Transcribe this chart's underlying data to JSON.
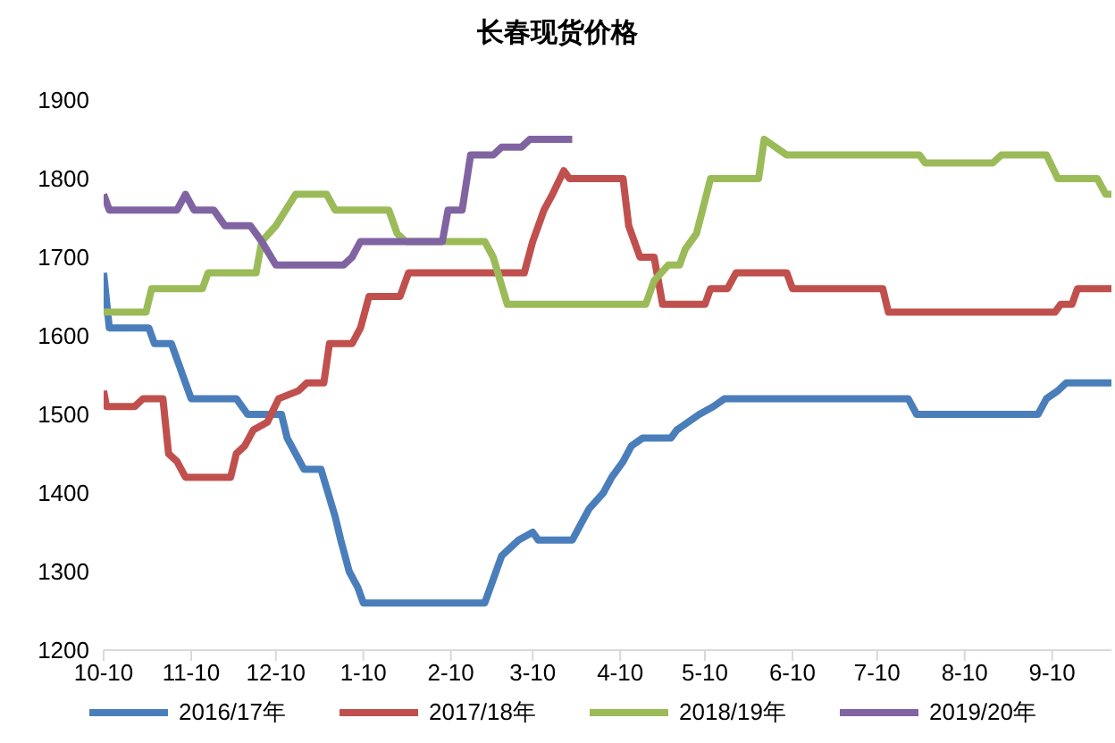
{
  "chart_data": {
    "type": "line",
    "title": "长春现货价格",
    "xlim": [
      "2019-10-10",
      "2020-10-01"
    ],
    "xticks": [
      {
        "value": "2019-10-10",
        "label": "10-10"
      },
      {
        "value": "2019-11-10",
        "label": "11-10"
      },
      {
        "value": "2019-12-10",
        "label": "12-10"
      },
      {
        "value": "2020-01-10",
        "label": "1-10"
      },
      {
        "value": "2020-02-10",
        "label": "2-10"
      },
      {
        "value": "2020-03-10",
        "label": "3-10"
      },
      {
        "value": "2020-04-10",
        "label": "4-10"
      },
      {
        "value": "2020-05-10",
        "label": "5-10"
      },
      {
        "value": "2020-06-10",
        "label": "6-10"
      },
      {
        "value": "2020-07-10",
        "label": "7-10"
      },
      {
        "value": "2020-08-10",
        "label": "8-10"
      },
      {
        "value": "2020-09-10",
        "label": "9-10"
      }
    ],
    "ylim": [
      1200,
      1900
    ],
    "yticks": [
      1200,
      1300,
      1400,
      1500,
      1600,
      1700,
      1800,
      1900
    ],
    "grid": false,
    "legend": "bottom",
    "marker": "none",
    "line_style": "solid",
    "series": [
      {
        "name": "2016/17年",
        "color": "#4a7ebb",
        "x": [
          "2019-10-10",
          "2019-10-12",
          "2019-10-26",
          "2019-10-28",
          "2019-11-03",
          "2019-11-06",
          "2019-11-08",
          "2019-11-10",
          "2019-11-26",
          "2019-11-30",
          "2019-12-12",
          "2019-12-14",
          "2019-12-20",
          "2019-12-26",
          "2019-12-31",
          "2020-01-02",
          "2020-01-05",
          "2020-01-08",
          "2020-01-10",
          "2020-02-22",
          "2020-02-24",
          "2020-02-28",
          "2020-03-05",
          "2020-03-10",
          "2020-03-12",
          "2020-03-24",
          "2020-03-27",
          "2020-03-30",
          "2020-04-04",
          "2020-04-07",
          "2020-04-11",
          "2020-04-14",
          "2020-04-18",
          "2020-04-28",
          "2020-04-30",
          "2020-05-08",
          "2020-05-13",
          "2020-05-17",
          "2020-07-21",
          "2020-07-24",
          "2020-09-05",
          "2020-09-08",
          "2020-09-12",
          "2020-09-15",
          "2020-10-01"
        ],
        "values": [
          1680,
          1610,
          1610,
          1590,
          1590,
          1560,
          1540,
          1520,
          1520,
          1500,
          1500,
          1470,
          1430,
          1430,
          1370,
          1340,
          1300,
          1280,
          1260,
          1260,
          1280,
          1320,
          1340,
          1350,
          1340,
          1340,
          1360,
          1380,
          1400,
          1420,
          1440,
          1460,
          1470,
          1470,
          1480,
          1500,
          1510,
          1520,
          1520,
          1500,
          1500,
          1520,
          1530,
          1540,
          1540
        ]
      },
      {
        "name": "2017/18年",
        "color": "#c0504d",
        "x": [
          "2019-10-10",
          "2019-10-11",
          "2019-10-21",
          "2019-10-24",
          "2019-10-31",
          "2019-11-02",
          "2019-11-05",
          "2019-11-08",
          "2019-11-24",
          "2019-11-26",
          "2019-11-29",
          "2019-12-02",
          "2019-12-07",
          "2019-12-11",
          "2019-12-18",
          "2019-12-21",
          "2019-12-27",
          "2019-12-29",
          "2020-01-06",
          "2020-01-09",
          "2020-01-12",
          "2020-01-23",
          "2020-01-26",
          "2020-03-07",
          "2020-03-10",
          "2020-03-14",
          "2020-03-17",
          "2020-03-21",
          "2020-03-23",
          "2020-04-11",
          "2020-04-13",
          "2020-04-17",
          "2020-04-22",
          "2020-04-25",
          "2020-05-10",
          "2020-05-12",
          "2020-05-18",
          "2020-05-21",
          "2020-06-08",
          "2020-06-10",
          "2020-07-12",
          "2020-07-14",
          "2020-09-11",
          "2020-09-13",
          "2020-09-17",
          "2020-09-19",
          "2020-10-01"
        ],
        "values": [
          1530,
          1510,
          1510,
          1520,
          1520,
          1450,
          1440,
          1420,
          1420,
          1450,
          1460,
          1480,
          1490,
          1520,
          1530,
          1540,
          1540,
          1590,
          1590,
          1610,
          1650,
          1650,
          1680,
          1680,
          1720,
          1760,
          1780,
          1810,
          1800,
          1800,
          1740,
          1700,
          1700,
          1640,
          1640,
          1660,
          1660,
          1680,
          1680,
          1660,
          1660,
          1630,
          1630,
          1640,
          1640,
          1660,
          1660
        ]
      },
      {
        "name": "2018/19年",
        "color": "#9bbb59",
        "x": [
          "2019-10-10",
          "2019-10-25",
          "2019-10-27",
          "2019-11-14",
          "2019-11-16",
          "2019-12-03",
          "2019-12-05",
          "2019-12-10",
          "2019-12-17",
          "2019-12-28",
          "2019-12-31",
          "2020-01-19",
          "2020-01-22",
          "2020-01-25",
          "2020-02-22",
          "2020-02-25",
          "2020-03-01",
          "2020-04-19",
          "2020-04-22",
          "2020-04-27",
          "2020-05-01",
          "2020-05-03",
          "2020-05-07",
          "2020-05-12",
          "2020-05-29",
          "2020-05-31",
          "2020-06-04",
          "2020-06-08",
          "2020-07-25",
          "2020-07-27",
          "2020-08-20",
          "2020-08-23",
          "2020-09-08",
          "2020-09-12",
          "2020-09-26",
          "2020-09-29",
          "2020-10-01"
        ],
        "values": [
          1630,
          1630,
          1660,
          1660,
          1680,
          1680,
          1720,
          1740,
          1780,
          1780,
          1760,
          1760,
          1730,
          1720,
          1720,
          1700,
          1640,
          1640,
          1670,
          1690,
          1690,
          1710,
          1730,
          1800,
          1800,
          1850,
          1840,
          1830,
          1830,
          1820,
          1820,
          1830,
          1830,
          1800,
          1800,
          1780,
          1780
        ]
      },
      {
        "name": "2019/20年",
        "color": "#8064a2",
        "x": [
          "2019-10-10",
          "2019-10-12",
          "2019-11-05",
          "2019-11-08",
          "2019-11-11",
          "2019-11-18",
          "2019-11-22",
          "2019-12-01",
          "2019-12-05",
          "2019-12-10",
          "2020-01-03",
          "2020-01-06",
          "2020-01-09",
          "2020-02-07",
          "2020-02-09",
          "2020-02-14",
          "2020-02-17",
          "2020-02-25",
          "2020-02-28",
          "2020-03-06",
          "2020-03-09",
          "2020-03-24"
        ],
        "values": [
          1780,
          1760,
          1760,
          1780,
          1760,
          1760,
          1740,
          1740,
          1720,
          1690,
          1690,
          1700,
          1720,
          1720,
          1760,
          1760,
          1830,
          1830,
          1840,
          1840,
          1850,
          1850
        ]
      }
    ]
  }
}
